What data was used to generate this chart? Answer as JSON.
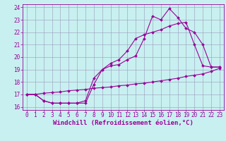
{
  "bg_color": "#c8f0f0",
  "grid_color": "#9999bb",
  "line_color": "#990099",
  "xlim": [
    -0.5,
    23.5
  ],
  "ylim": [
    15.75,
    24.25
  ],
  "xticks": [
    0,
    1,
    2,
    3,
    4,
    5,
    6,
    7,
    8,
    9,
    10,
    11,
    12,
    13,
    14,
    15,
    16,
    17,
    18,
    19,
    20,
    21,
    22,
    23
  ],
  "yticks": [
    16,
    17,
    18,
    19,
    20,
    21,
    22,
    23,
    24
  ],
  "line1_x": [
    0,
    1,
    2,
    3,
    4,
    5,
    6,
    7,
    8,
    9,
    10,
    11,
    12,
    13,
    14,
    15,
    16,
    17,
    18,
    19,
    20,
    21,
    22,
    23
  ],
  "line1_y": [
    17.0,
    17.0,
    16.5,
    16.3,
    16.3,
    16.3,
    16.3,
    16.3,
    17.8,
    19.0,
    19.3,
    19.4,
    19.8,
    20.1,
    21.5,
    23.3,
    23.0,
    23.9,
    23.2,
    22.3,
    22.0,
    21.0,
    19.2,
    19.2
  ],
  "line2_x": [
    0,
    1,
    2,
    3,
    4,
    5,
    6,
    7,
    8,
    9,
    10,
    11,
    12,
    13,
    14,
    15,
    16,
    17,
    18,
    19,
    20,
    21,
    22,
    23
  ],
  "line2_y": [
    17.0,
    17.0,
    16.5,
    16.3,
    16.3,
    16.3,
    16.3,
    16.5,
    18.3,
    19.0,
    19.5,
    19.8,
    20.5,
    21.5,
    21.8,
    22.0,
    22.2,
    22.5,
    22.7,
    22.8,
    21.0,
    19.3,
    19.2,
    19.2
  ],
  "line3_x": [
    0,
    1,
    2,
    3,
    4,
    5,
    6,
    7,
    8,
    9,
    10,
    11,
    12,
    13,
    14,
    15,
    16,
    17,
    18,
    19,
    20,
    21,
    22,
    23
  ],
  "line3_y": [
    17.0,
    17.0,
    17.1,
    17.15,
    17.2,
    17.3,
    17.35,
    17.4,
    17.5,
    17.55,
    17.6,
    17.7,
    17.75,
    17.85,
    17.9,
    18.0,
    18.1,
    18.2,
    18.3,
    18.45,
    18.55,
    18.65,
    18.85,
    19.1
  ],
  "marker": "D",
  "markersize": 2.0,
  "linewidth": 0.8,
  "xlabel": "Windchill (Refroidissement éolien,°C)",
  "xlabel_fontsize": 6.5,
  "tick_fontsize": 5.5
}
